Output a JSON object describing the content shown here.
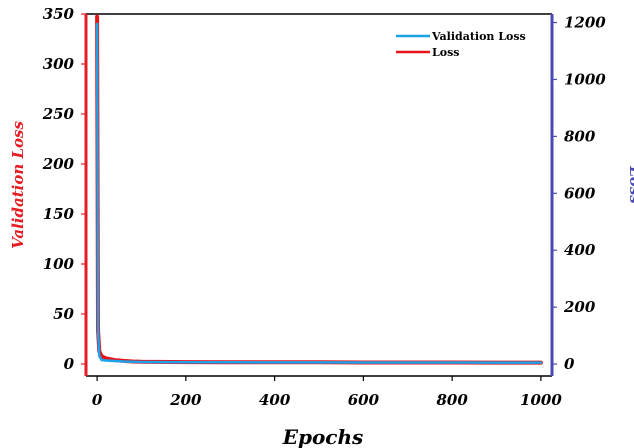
{
  "chart_data": {
    "type": "line",
    "xlabel": "Epochs",
    "ylabel_left": "Validation Loss",
    "ylabel_right": "Loss",
    "xlim": [
      -25,
      1025
    ],
    "ylim_left": [
      -12,
      350
    ],
    "ylim_right": [
      -42,
      1230
    ],
    "x_ticks": [
      0,
      200,
      400,
      600,
      800,
      1000
    ],
    "y_left_ticks": [
      0,
      50,
      100,
      150,
      200,
      250,
      300,
      350
    ],
    "y_right_ticks": [
      0,
      200,
      400,
      600,
      800,
      1000,
      1200
    ],
    "legend_position": "top-right",
    "grid": false,
    "series": [
      {
        "name": "Validation Loss",
        "axis": "left",
        "color": "#1aa3e8",
        "x": [
          0,
          2,
          5,
          10,
          20,
          40,
          60,
          80,
          100,
          200,
          300,
          400,
          500,
          600,
          700,
          800,
          900,
          1000
        ],
        "y": [
          340,
          35,
          8,
          4,
          3.5,
          3,
          2.5,
          2.2,
          2,
          1.8,
          1.7,
          1.6,
          1.6,
          1.5,
          1.5,
          1.5,
          1.4,
          1.4
        ]
      },
      {
        "name": "Loss",
        "axis": "right",
        "color": "#e8141a",
        "x": [
          0,
          2,
          5,
          10,
          20,
          40,
          60,
          80,
          100,
          200,
          300,
          400,
          500,
          600,
          700,
          800,
          900,
          1000
        ],
        "y": [
          1220,
          120,
          45,
          28,
          20,
          14,
          11,
          9,
          8,
          7,
          6.5,
          6,
          6,
          5.5,
          5.5,
          5.5,
          5,
          5
        ]
      }
    ]
  },
  "colors": {
    "left_axis": "#e51c23",
    "right_axis": "#4a4ab5",
    "left_title": "#e51c23",
    "right_title": "#4a4ab5"
  }
}
